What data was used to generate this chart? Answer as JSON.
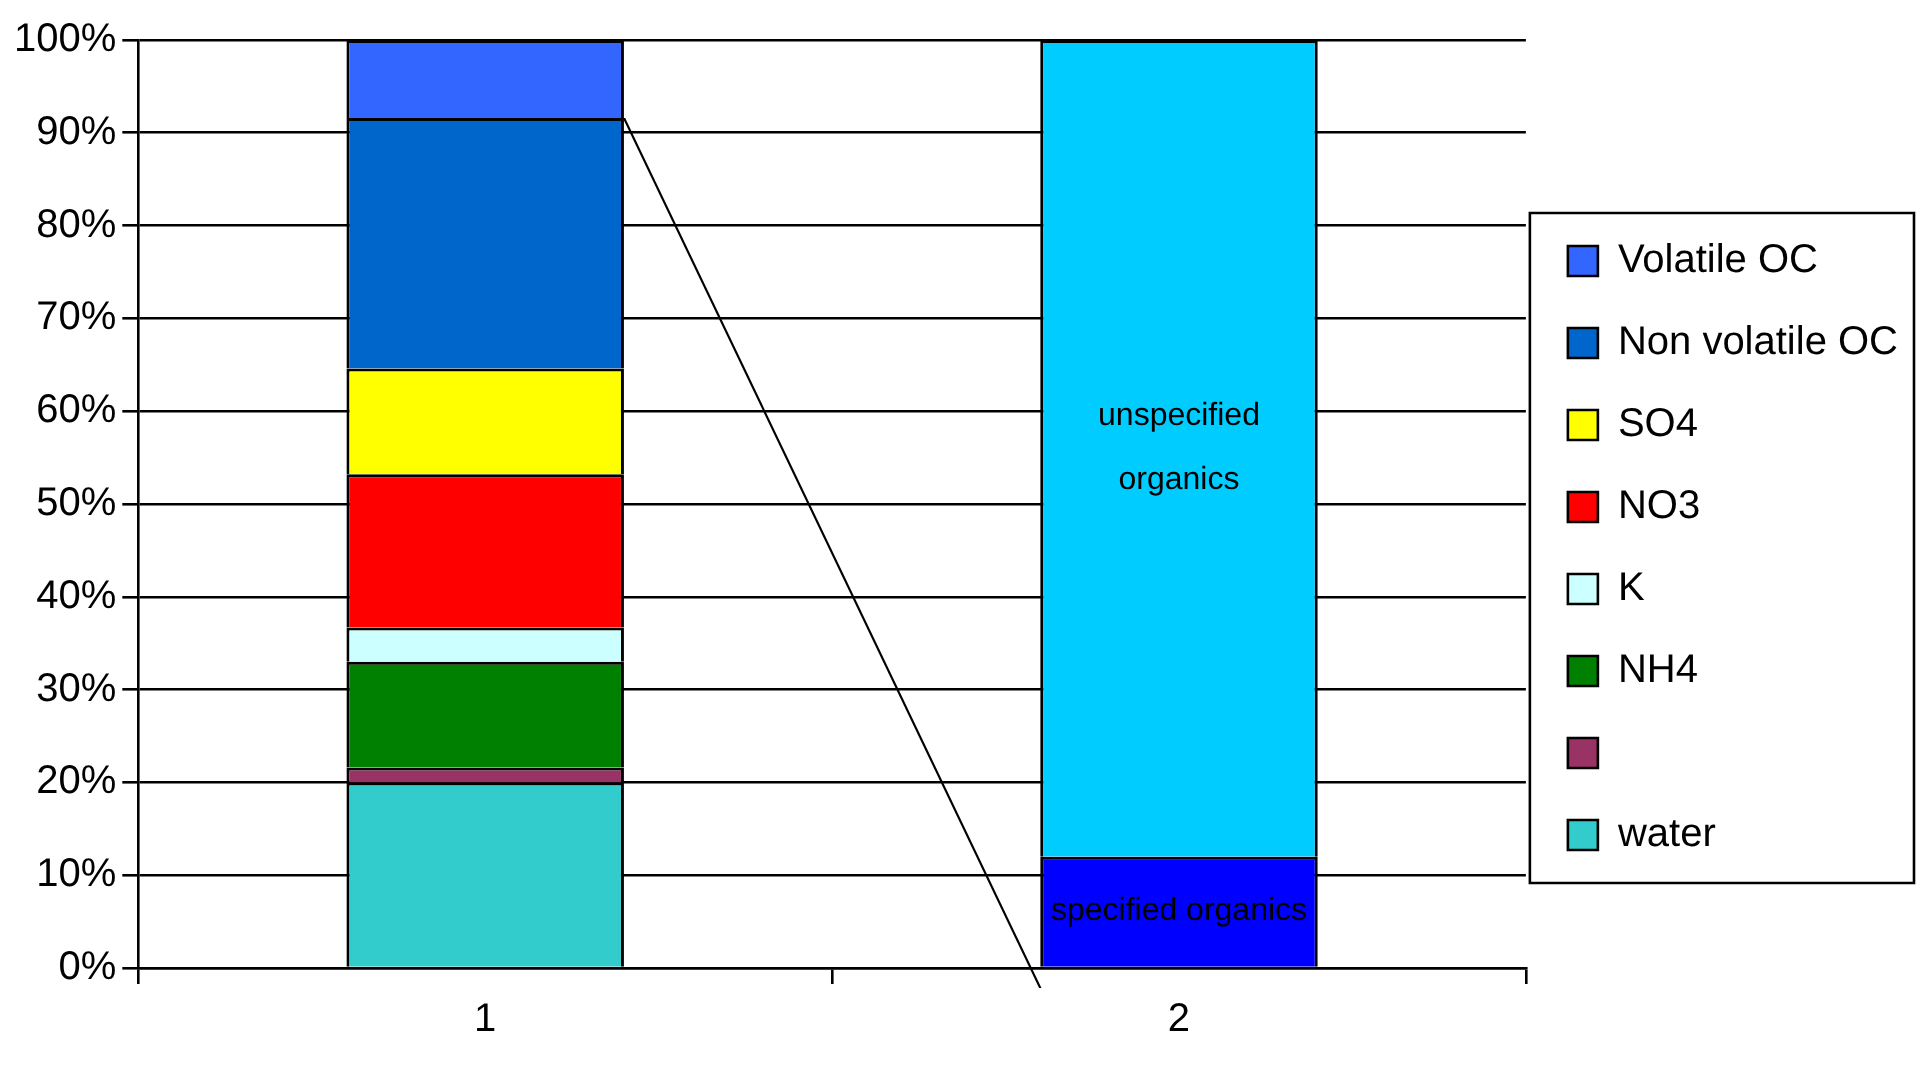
{
  "chart_data": {
    "type": "bar",
    "stacked": true,
    "categories": [
      "1",
      "2"
    ],
    "ylim": [
      0,
      100
    ],
    "yticks": [
      {
        "value": 0,
        "label": "0%"
      },
      {
        "value": 10,
        "label": "10%"
      },
      {
        "value": 20,
        "label": "20%"
      },
      {
        "value": 30,
        "label": "30%"
      },
      {
        "value": 40,
        "label": "40%"
      },
      {
        "value": 50,
        "label": "50%"
      },
      {
        "value": 60,
        "label": "60%"
      },
      {
        "value": 70,
        "label": "70%"
      },
      {
        "value": 80,
        "label": "80%"
      },
      {
        "value": 90,
        "label": "90%"
      },
      {
        "value": 100,
        "label": "100%"
      }
    ],
    "grid": "y",
    "legend": "right",
    "series": [
      {
        "name": "water",
        "color": "#33cccc",
        "values": [
          20,
          null
        ]
      },
      {
        "color": "#993366",
        "values": [
          1.6,
          null
        ]
      },
      {
        "name": "NH4",
        "color": "#008000",
        "values": [
          11.4,
          null
        ]
      },
      {
        "name": "K",
        "color": "#ccffff",
        "values": [
          3.7,
          null
        ]
      },
      {
        "name": "NO3",
        "color": "#ff0000",
        "values": [
          16.5,
          null
        ]
      },
      {
        "name": "SO4",
        "color": "#ffff00",
        "values": [
          11.4,
          null
        ]
      },
      {
        "name": "Non volatile OC",
        "color": "#0066cc",
        "values": [
          27,
          null
        ]
      },
      {
        "name": "Volatile OC",
        "color": "#3366ff",
        "values": [
          8.4,
          null
        ]
      },
      {
        "name": "specified organics",
        "color": "#0000ff",
        "values": [
          null,
          12
        ]
      },
      {
        "name": "unspecified organics",
        "color": "#00ccff",
        "values": [
          null,
          88
        ]
      }
    ]
  }
}
